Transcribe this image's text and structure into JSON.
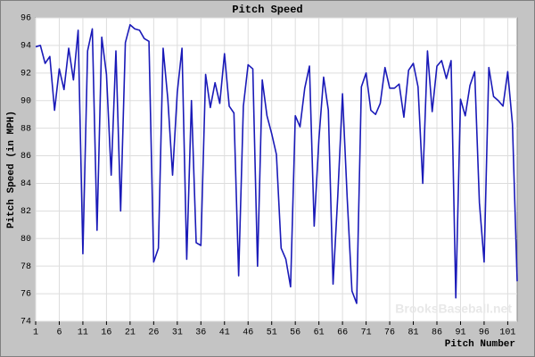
{
  "chart_data": {
    "type": "line",
    "title": "Pitch Speed",
    "x_label": "Pitch Number",
    "y_label": "Pitch Speed (in MPH)",
    "annotation": "BrooksBaseball.net",
    "color": "#1a1ab8",
    "grid": true,
    "x": [
      1,
      2,
      3,
      4,
      5,
      6,
      7,
      8,
      9,
      10,
      11,
      12,
      13,
      14,
      15,
      16,
      17,
      18,
      19,
      20,
      21,
      22,
      23,
      24,
      25,
      26,
      27,
      28,
      29,
      30,
      31,
      32,
      33,
      34,
      35,
      36,
      37,
      38,
      39,
      40,
      41,
      42,
      43,
      44,
      45,
      46,
      47,
      48,
      49,
      50,
      51,
      52,
      53,
      54,
      55,
      56,
      57,
      58,
      59,
      60,
      61,
      62,
      63,
      64,
      65,
      66,
      67,
      68,
      69,
      70,
      71,
      72,
      73,
      74,
      75,
      76,
      77,
      78,
      79,
      80,
      81,
      82,
      83,
      84,
      85,
      86,
      87,
      88,
      89,
      90,
      91,
      92,
      93,
      94,
      95,
      96,
      97,
      98,
      99,
      100,
      101,
      102,
      103
    ],
    "values": [
      93.9,
      94.0,
      92.7,
      93.2,
      89.3,
      92.3,
      90.8,
      93.8,
      91.5,
      95.1,
      78.9,
      93.6,
      95.2,
      80.6,
      94.6,
      91.9,
      84.6,
      93.6,
      82.0,
      94.2,
      95.5,
      95.2,
      95.1,
      94.5,
      94.3,
      78.3,
      79.3,
      93.8,
      90.1,
      84.6,
      90.6,
      93.8,
      78.5,
      90.0,
      79.7,
      79.5,
      91.9,
      89.5,
      91.3,
      89.8,
      93.4,
      89.6,
      89.1,
      77.3,
      89.6,
      92.6,
      92.3,
      78.0,
      91.5,
      88.9,
      87.6,
      86.1,
      79.3,
      78.5,
      76.5,
      88.9,
      88.1,
      90.9,
      92.5,
      80.9,
      87.2,
      91.7,
      89.3,
      76.7,
      83.1,
      90.5,
      82.9,
      76.2,
      75.3,
      91.0,
      92.0,
      89.3,
      89.0,
      89.8,
      92.4,
      90.9,
      90.9,
      91.2,
      88.8,
      92.2,
      92.7,
      91.0,
      84.0,
      93.6,
      89.2,
      92.5,
      92.9,
      91.6,
      92.9,
      75.7,
      90.1,
      88.9,
      91.1,
      92.1,
      82.6,
      78.3,
      92.4,
      90.3,
      90.0,
      89.6,
      92.1,
      88.3,
      76.9
    ],
    "xlim": [
      1,
      103
    ],
    "xticks": [
      1,
      6,
      11,
      16,
      21,
      26,
      31,
      36,
      41,
      46,
      51,
      56,
      61,
      66,
      71,
      76,
      81,
      86,
      91,
      96,
      101
    ],
    "ylim": [
      74,
      96
    ],
    "yticks": [
      74,
      76,
      78,
      80,
      82,
      84,
      86,
      88,
      90,
      92,
      94,
      96
    ]
  }
}
